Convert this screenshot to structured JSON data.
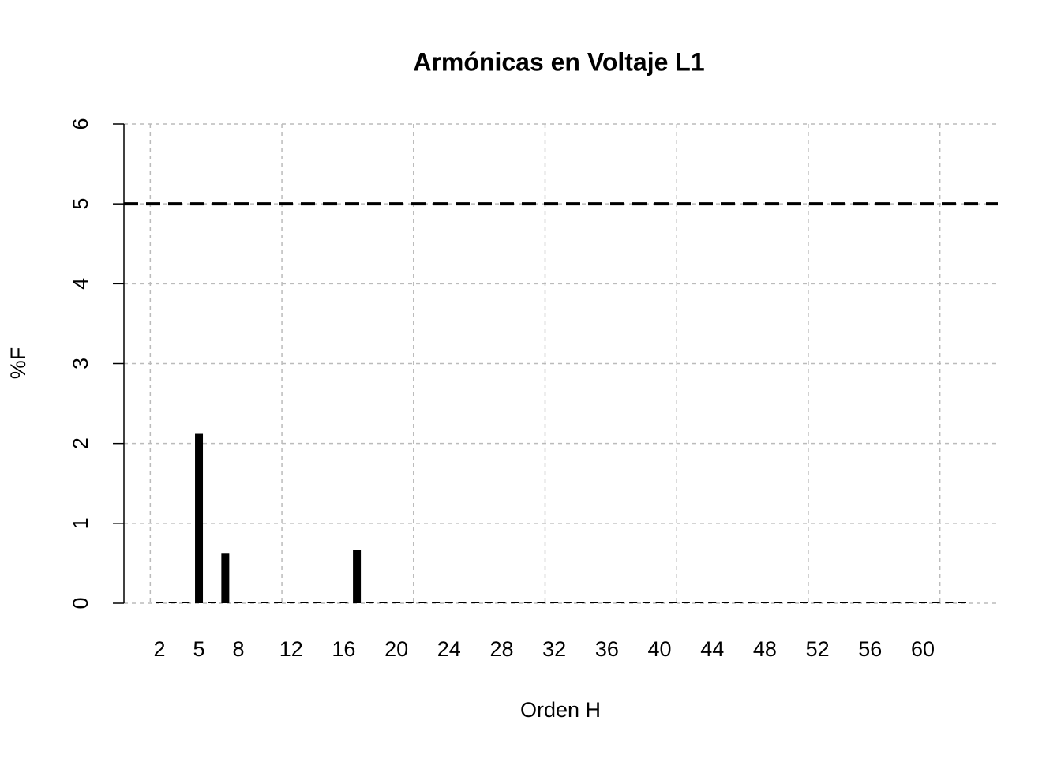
{
  "chart_data": {
    "type": "bar",
    "title": "Armónicas en Voltaje L1",
    "x_label": "Orden H",
    "y_label": "%F",
    "x": [
      2,
      3,
      4,
      5,
      6,
      7,
      8,
      9,
      10,
      11,
      12,
      13,
      14,
      15,
      16,
      17,
      18,
      19,
      20,
      21,
      22,
      23,
      24,
      25,
      26,
      27,
      28,
      29,
      30,
      31,
      32,
      33,
      34,
      35,
      36,
      37,
      38,
      39,
      40,
      41,
      42,
      43,
      44,
      45,
      46,
      47,
      48,
      49,
      50,
      51,
      52,
      53,
      54,
      55,
      56,
      57,
      58,
      59,
      60,
      61,
      62,
      63
    ],
    "values": [
      0.01,
      0.01,
      0.01,
      2.12,
      0.01,
      0.62,
      0.01,
      0.01,
      0.01,
      0.01,
      0.01,
      0.01,
      0.01,
      0.01,
      0.01,
      0.67,
      0.01,
      0.01,
      0.01,
      0.01,
      0.01,
      0.01,
      0.01,
      0.01,
      0.01,
      0.01,
      0.01,
      0.01,
      0.01,
      0.01,
      0.01,
      0.01,
      0.01,
      0.01,
      0.01,
      0.01,
      0.01,
      0.01,
      0.01,
      0.01,
      0.01,
      0.01,
      0.01,
      0.01,
      0.01,
      0.01,
      0.01,
      0.01,
      0.01,
      0.01,
      0.01,
      0.01,
      0.01,
      0.01,
      0.01,
      0.01,
      0.01,
      0.01,
      0.01,
      0.01,
      0.01,
      0.01
    ],
    "color": "#000000",
    "xlim": [
      -0.7,
      65.7
    ],
    "xticks": [
      2,
      5,
      8,
      12,
      16,
      20,
      24,
      28,
      32,
      36,
      40,
      44,
      48,
      52,
      56,
      60
    ],
    "xgrid": [
      1.3,
      11.3,
      21.3,
      31.3,
      41.3,
      51.3,
      61.3
    ],
    "ylim": [
      0,
      6
    ],
    "yticks": [
      0,
      1,
      2,
      3,
      4,
      5,
      6
    ],
    "grid": true,
    "reference_line": 5
  }
}
